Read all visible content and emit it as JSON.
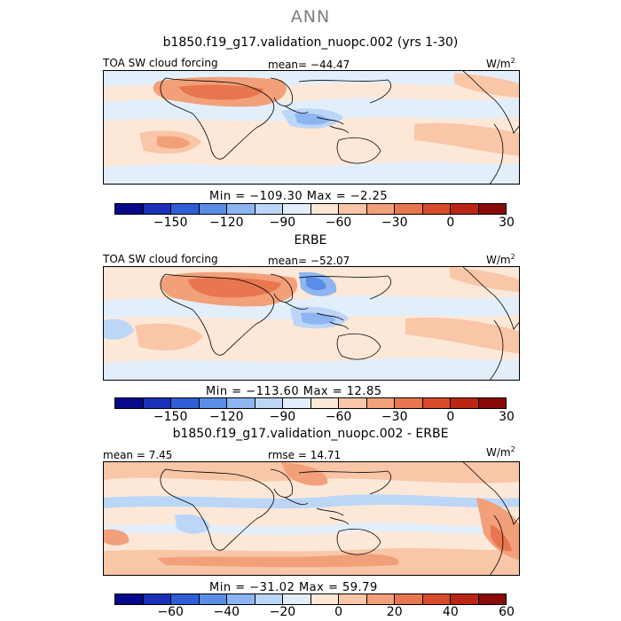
{
  "main_title": "ANN",
  "panels": [
    {
      "title": "b1850.f19_g17.validation_nuopc.002 (yrs 1-30)",
      "left_label": "TOA SW cloud forcing",
      "center_label": "mean= −44.47",
      "units": "W/m",
      "units_sup": "2",
      "min_max": "Min = −109.30 Max =  −2.25",
      "tick_labels": [
        "−150",
        "−120",
        "−90",
        "−60",
        "−30",
        "0",
        "30"
      ]
    },
    {
      "title": "ERBE",
      "left_label": "TOA SW cloud forcing",
      "center_label": "mean= −52.07",
      "units": "W/m",
      "units_sup": "2",
      "min_max": "Min = −113.60 Max =  12.85",
      "tick_labels": [
        "−150",
        "−120",
        "−90",
        "−60",
        "−30",
        "0",
        "30"
      ]
    },
    {
      "title": "b1850.f19_g17.validation_nuopc.002 - ERBE",
      "left_label": "mean =   7.45",
      "center_label": "rmse =  14.71",
      "units": "W/m",
      "units_sup": "2",
      "min_max": "Min = −31.02 Max =  59.79",
      "tick_labels": [
        "−60",
        "−40",
        "−20",
        "0",
        "20",
        "40",
        "60"
      ]
    }
  ],
  "colors": {
    "abs_scale": [
      "#08088a",
      "#1b30b8",
      "#2f5ed6",
      "#5a8de8",
      "#8db5f2",
      "#bcd6f8",
      "#e3eefb",
      "#fde8d8",
      "#f9c6a8",
      "#f2a07a",
      "#e8764f",
      "#d84a2a",
      "#bb2612",
      "#8a0a0a"
    ],
    "diff_scale": [
      "#08088a",
      "#1b30b8",
      "#2f5ed6",
      "#5a8de8",
      "#8db5f2",
      "#bcd6f8",
      "#e3eefb",
      "#fde8d8",
      "#f9c6a8",
      "#f2a07a",
      "#e8764f",
      "#d84a2a",
      "#bb2612",
      "#8a0a0a"
    ]
  }
}
